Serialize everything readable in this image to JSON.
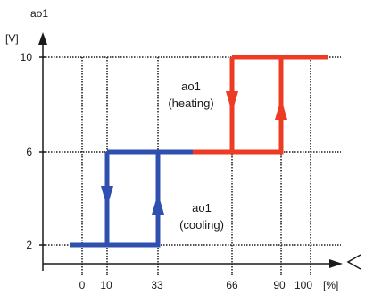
{
  "axis": {
    "y_title": "ao1",
    "y_unit": "[V]",
    "x_unit": "[%]",
    "y_ticks": [
      "10",
      "6",
      "2"
    ],
    "x_ticks": [
      "0",
      "10",
      "33",
      "66",
      "90",
      "100"
    ]
  },
  "annotations": {
    "heating_line1": "ao1",
    "heating_line2": "(heating)",
    "cooling_line1": "ao1",
    "cooling_line2": "(cooling)"
  },
  "colors": {
    "heating": "#ee3b24",
    "cooling": "#3050b0",
    "axis": "#1a1a1a",
    "grid": "#1a1a1a"
  },
  "icons": {
    "x_axis_symbol": "delta-triangle-icon"
  }
}
